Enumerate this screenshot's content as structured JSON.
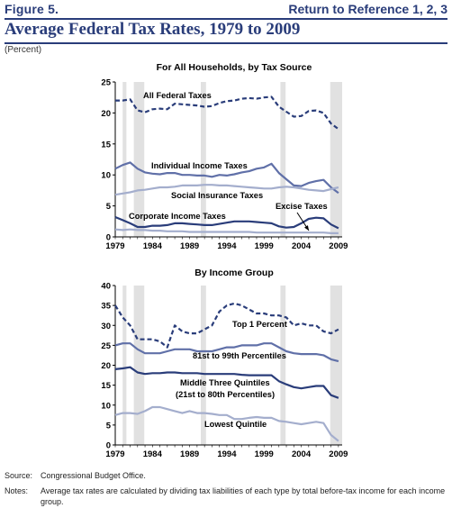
{
  "header": {
    "figure_label": "Figure 5.",
    "return_link": "Return to Reference 1, 2, 3"
  },
  "title": "Average Federal Tax Rates, 1979 to 2009",
  "units_label": "(Percent)",
  "colors": {
    "navy": "#2a3d7a",
    "mid_blue": "#6070a8",
    "light_blue": "#a4aecd",
    "shade": "#e1e1e1"
  },
  "recession_bands": [
    [
      1980.0,
      1980.5
    ],
    [
      1981.5,
      1982.9
    ],
    [
      1990.5,
      1991.2
    ],
    [
      2001.2,
      2001.9
    ],
    [
      2007.9,
      2009.5
    ]
  ],
  "chart_data": [
    {
      "type": "line",
      "title": "For All Households, by Tax Source",
      "xlabel": "",
      "ylabel": "",
      "xlim": [
        1979,
        2009.5
      ],
      "ylim": [
        0,
        25
      ],
      "x_ticks": [
        "1979",
        "1984",
        "1989",
        "1994",
        "1999",
        "2004",
        "2009"
      ],
      "y_ticks": [
        "0",
        "5",
        "10",
        "15",
        "20",
        "25"
      ],
      "grid": false,
      "x": [
        1979,
        1980,
        1981,
        1982,
        1983,
        1984,
        1985,
        1986,
        1987,
        1988,
        1989,
        1990,
        1991,
        1992,
        1993,
        1994,
        1995,
        1996,
        1997,
        1998,
        1999,
        2000,
        2001,
        2002,
        2003,
        2004,
        2005,
        2006,
        2007,
        2008,
        2009
      ],
      "series": [
        {
          "name": "All Federal Taxes",
          "style": "dashed",
          "color": "#2a3d7a",
          "values": [
            22.0,
            22.0,
            22.2,
            20.4,
            20.1,
            20.6,
            20.7,
            20.6,
            21.5,
            21.4,
            21.3,
            21.2,
            21.0,
            21.1,
            21.6,
            21.9,
            22.0,
            22.3,
            22.4,
            22.3,
            22.5,
            22.6,
            21.0,
            20.2,
            19.4,
            19.5,
            20.3,
            20.4,
            20.0,
            18.3,
            17.4
          ]
        },
        {
          "name": "Individual Income Taxes",
          "style": "solid",
          "color": "#6070a8",
          "values": [
            11.0,
            11.6,
            12.0,
            11.0,
            10.4,
            10.2,
            10.1,
            10.3,
            10.3,
            10.0,
            10.0,
            9.9,
            9.9,
            9.7,
            10.0,
            9.9,
            10.1,
            10.4,
            10.6,
            11.0,
            11.2,
            11.8,
            10.3,
            9.3,
            8.3,
            8.2,
            8.7,
            9.0,
            9.2,
            8.0,
            7.1
          ]
        },
        {
          "name": "Social Insurance Taxes",
          "style": "solid",
          "color": "#a4aecd",
          "values": [
            6.8,
            7.0,
            7.2,
            7.5,
            7.6,
            7.8,
            8.0,
            8.0,
            8.1,
            8.3,
            8.3,
            8.3,
            8.4,
            8.4,
            8.3,
            8.3,
            8.2,
            8.1,
            8.0,
            7.9,
            7.8,
            7.8,
            8.0,
            8.1,
            8.0,
            7.8,
            7.6,
            7.5,
            7.4,
            7.7,
            8.0
          ]
        },
        {
          "name": "Corporate Income Taxes",
          "style": "solid",
          "color": "#2a3d7a",
          "values": [
            3.2,
            2.7,
            2.2,
            1.6,
            1.6,
            1.8,
            1.8,
            1.9,
            2.2,
            2.2,
            2.1,
            2.0,
            1.9,
            1.9,
            2.1,
            2.3,
            2.5,
            2.5,
            2.5,
            2.4,
            2.3,
            2.2,
            1.7,
            1.5,
            1.6,
            2.2,
            2.9,
            3.1,
            3.0,
            2.0,
            1.4
          ]
        },
        {
          "name": "Excise Taxes",
          "style": "solid",
          "color": "#a4aecd",
          "values": [
            1.2,
            1.1,
            1.2,
            1.1,
            1.1,
            1.0,
            1.0,
            0.9,
            0.9,
            0.9,
            0.8,
            0.8,
            0.8,
            0.8,
            0.8,
            0.8,
            0.8,
            0.8,
            0.8,
            0.7,
            0.7,
            0.7,
            0.7,
            0.7,
            0.7,
            0.7,
            0.7,
            0.7,
            0.7,
            0.6,
            0.6
          ]
        }
      ],
      "annotations": [
        {
          "text": "All Federal Taxes",
          "series": "All Federal Taxes"
        },
        {
          "text": "Individual Income Taxes",
          "series": "Individual Income Taxes"
        },
        {
          "text": "Social Insurance Taxes",
          "series": "Social Insurance Taxes"
        },
        {
          "text": "Corporate Income Taxes",
          "series": "Corporate Income Taxes"
        },
        {
          "text": "Excise Taxes",
          "series": "Excise Taxes",
          "arrow": true
        }
      ]
    },
    {
      "type": "line",
      "title": "By Income Group",
      "xlabel": "",
      "ylabel": "",
      "xlim": [
        1979,
        2009.5
      ],
      "ylim": [
        0,
        40
      ],
      "x_ticks": [
        "1979",
        "1984",
        "1989",
        "1994",
        "1999",
        "2004",
        "2009"
      ],
      "y_ticks": [
        "0",
        "5",
        "10",
        "15",
        "20",
        "25",
        "30",
        "35",
        "40"
      ],
      "grid": false,
      "x": [
        1979,
        1980,
        1981,
        1982,
        1983,
        1984,
        1985,
        1986,
        1987,
        1988,
        1989,
        1990,
        1991,
        1992,
        1993,
        1994,
        1995,
        1996,
        1997,
        1998,
        1999,
        2000,
        2001,
        2002,
        2003,
        2004,
        2005,
        2006,
        2007,
        2008,
        2009
      ],
      "series": [
        {
          "name": "Top 1 Percent",
          "style": "dashed",
          "color": "#2a3d7a",
          "values": [
            35.0,
            32.0,
            30.0,
            26.5,
            26.5,
            26.5,
            26.0,
            24.5,
            30.0,
            28.5,
            28.0,
            28.0,
            29.0,
            30.0,
            33.5,
            35.0,
            35.5,
            35.0,
            34.0,
            33.0,
            33.0,
            32.5,
            32.5,
            32.0,
            30.0,
            30.5,
            30.0,
            30.0,
            28.5,
            28.0,
            29.0
          ]
        },
        {
          "name": "81st to 99th Percentiles",
          "style": "solid",
          "color": "#6070a8",
          "values": [
            25.0,
            25.5,
            25.5,
            24.0,
            23.0,
            23.0,
            23.0,
            23.5,
            24.0,
            24.0,
            24.0,
            23.5,
            23.5,
            23.5,
            24.0,
            24.5,
            24.5,
            25.0,
            25.0,
            25.0,
            25.5,
            25.5,
            24.5,
            23.5,
            23.0,
            22.8,
            22.8,
            22.8,
            22.5,
            21.5,
            21.0
          ]
        },
        {
          "name": "Middle Three Quintiles",
          "style": "solid",
          "color": "#2a3d7a",
          "values": [
            19.0,
            19.2,
            19.5,
            18.2,
            17.8,
            18.0,
            18.0,
            18.2,
            18.2,
            18.0,
            18.0,
            18.0,
            17.8,
            17.8,
            17.8,
            17.8,
            17.8,
            17.6,
            17.5,
            17.5,
            17.5,
            17.5,
            16.0,
            15.2,
            14.5,
            14.2,
            14.5,
            14.8,
            14.8,
            12.5,
            11.8
          ]
        },
        {
          "name": "Lowest Quintile",
          "style": "solid",
          "color": "#a4aecd",
          "values": [
            7.5,
            8.0,
            8.0,
            7.8,
            8.5,
            9.5,
            9.5,
            9.0,
            8.5,
            8.0,
            8.5,
            8.0,
            8.0,
            7.8,
            7.5,
            7.5,
            6.5,
            6.5,
            6.8,
            7.0,
            6.8,
            6.8,
            6.0,
            5.8,
            5.5,
            5.2,
            5.5,
            5.8,
            5.5,
            2.5,
            1.0
          ]
        }
      ],
      "annotations": [
        {
          "text": "Top 1 Percent",
          "series": "Top 1 Percent"
        },
        {
          "text": "81st to 99th Percentiles",
          "series": "81st to 99th Percentiles"
        },
        {
          "text": "Middle Three Quintiles",
          "series": "Middle Three Quintiles"
        },
        {
          "text": "(21st to 80th Percentiles)",
          "series": "Middle Three Quintiles"
        },
        {
          "text": "Lowest Quintile",
          "series": "Lowest Quintile"
        }
      ]
    }
  ],
  "source": {
    "label": "Source:",
    "text": "Congressional Budget Office."
  },
  "notes": {
    "label": "Notes:",
    "text": "Average tax rates are calculated by dividing tax liabilities of each type by total before-tax income for each income group."
  }
}
